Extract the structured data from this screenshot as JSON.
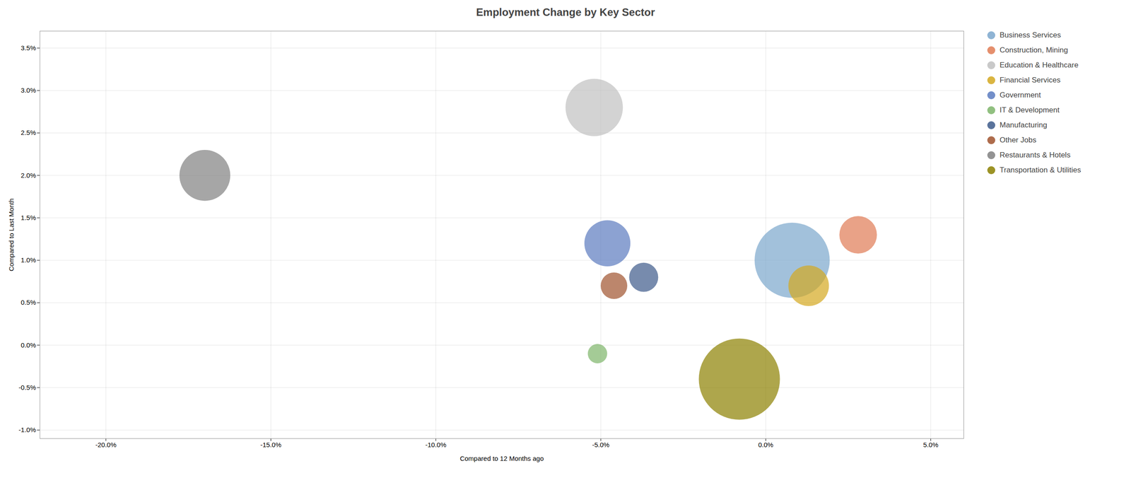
{
  "chart_data": {
    "type": "scatter",
    "title": "Employment Change by Key Sector",
    "xlabel": "Compared to 12 Months ago",
    "ylabel": "Compared to Last Month",
    "xlim": [
      -0.22,
      0.06
    ],
    "ylim": [
      -0.011,
      0.037
    ],
    "xticks": [
      {
        "value": -0.2,
        "label": "-20.0%"
      },
      {
        "value": -0.15,
        "label": "-15.0%"
      },
      {
        "value": -0.1,
        "label": "-10.0%"
      },
      {
        "value": -0.05,
        "label": "-5.0%"
      },
      {
        "value": 0.0,
        "label": "0.0%"
      },
      {
        "value": 0.05,
        "label": "5.0%"
      }
    ],
    "yticks": [
      {
        "value": -0.01,
        "label": "-1.0%"
      },
      {
        "value": -0.005,
        "label": "-0.5%"
      },
      {
        "value": 0.0,
        "label": "0.0%"
      },
      {
        "value": 0.005,
        "label": "0.5%"
      },
      {
        "value": 0.01,
        "label": "1.0%"
      },
      {
        "value": 0.015,
        "label": "1.5%"
      },
      {
        "value": 0.02,
        "label": "2.0%"
      },
      {
        "value": 0.025,
        "label": "2.5%"
      },
      {
        "value": 0.03,
        "label": "3.0%"
      },
      {
        "value": 0.035,
        "label": "3.5%"
      }
    ],
    "grid": true,
    "legend": "right",
    "series": [
      {
        "name": "Business Services",
        "color": "#7ba7cc",
        "x": [
          0.008
        ],
        "y": [
          0.01
        ],
        "size": [
          12000
        ]
      },
      {
        "name": "Construction, Mining",
        "color": "#e07b54",
        "x": [
          0.028
        ],
        "y": [
          0.013
        ],
        "size": [
          3000
        ]
      },
      {
        "name": "Education & Healthcare",
        "color": "#c0c0c0",
        "x": [
          -0.052
        ],
        "y": [
          0.028
        ],
        "size": [
          7000
        ]
      },
      {
        "name": "Financial Services",
        "color": "#d4a820",
        "x": [
          0.013
        ],
        "y": [
          0.007
        ],
        "size": [
          3500
        ]
      },
      {
        "name": "Government",
        "color": "#5b7bbf",
        "x": [
          -0.048
        ],
        "y": [
          0.012
        ],
        "size": [
          4500
        ]
      },
      {
        "name": "IT & Development",
        "color": "#7eb56a",
        "x": [
          -0.051
        ],
        "y": [
          -0.001
        ],
        "size": [
          800
        ]
      },
      {
        "name": "Manufacturing",
        "color": "#3d5a8a",
        "x": [
          -0.037
        ],
        "y": [
          0.008
        ],
        "size": [
          1800
        ]
      },
      {
        "name": "Other Jobs",
        "color": "#a0522d",
        "x": [
          -0.046
        ],
        "y": [
          0.007
        ],
        "size": [
          1500
        ]
      },
      {
        "name": "Restaurants & Hotels",
        "color": "#808080",
        "x": [
          -0.17
        ],
        "y": [
          0.02
        ],
        "size": [
          5500
        ]
      },
      {
        "name": "Transportation & Utilities",
        "color": "#8b8000",
        "x": [
          -0.008
        ],
        "y": [
          -0.004
        ],
        "size": [
          14000
        ]
      }
    ]
  }
}
